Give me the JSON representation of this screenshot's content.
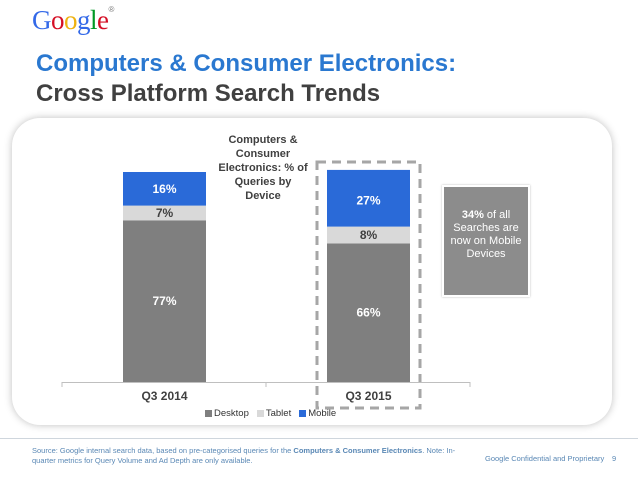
{
  "logo": {
    "letters": [
      "G",
      "o",
      "o",
      "g",
      "l",
      "e"
    ],
    "colors": [
      "#3369e8",
      "#d50f25",
      "#eeb211",
      "#3369e8",
      "#009925",
      "#d50f25"
    ],
    "tm": "®"
  },
  "header": {
    "title_line1": "Computers & Consumer Electronics:",
    "title_line2": "Cross Platform Search Trends"
  },
  "colors": {
    "desktop": "#7f7f7f",
    "tablet": "#d9d9d9",
    "mobile": "#2a6ad8",
    "accent": "#2a78d0"
  },
  "chart_data": {
    "type": "bar",
    "stacked": true,
    "title": "Computers & Consumer Electronics: % of Queries by Device",
    "categories": [
      "Q3 2014",
      "Q3 2015"
    ],
    "series": [
      {
        "name": "Desktop",
        "values": [
          77,
          66
        ],
        "labels": [
          "77%",
          "66%"
        ]
      },
      {
        "name": "Tablet",
        "values": [
          7,
          8
        ],
        "labels": [
          "7%",
          "8%"
        ]
      },
      {
        "name": "Mobile",
        "values": [
          16,
          27
        ],
        "labels": [
          "16%",
          "27%"
        ]
      }
    ],
    "ylim": [
      0,
      100
    ],
    "grid": false,
    "legend_position": "bottom",
    "highlighted_category": "Q3 2015"
  },
  "callout": {
    "highlight": "34%",
    "text": " of all Searches are now on Mobile Devices"
  },
  "footer": {
    "source_prefix": "Source: Google internal search data, based on pre-categorised queries for the ",
    "source_bold": "Computers & Consumer Electronics",
    "source_suffix": ". Note: In-quarter metrics for Query Volume and Ad Depth are only available.",
    "confidential": "Google Confidential and Proprietary",
    "page": "9"
  }
}
